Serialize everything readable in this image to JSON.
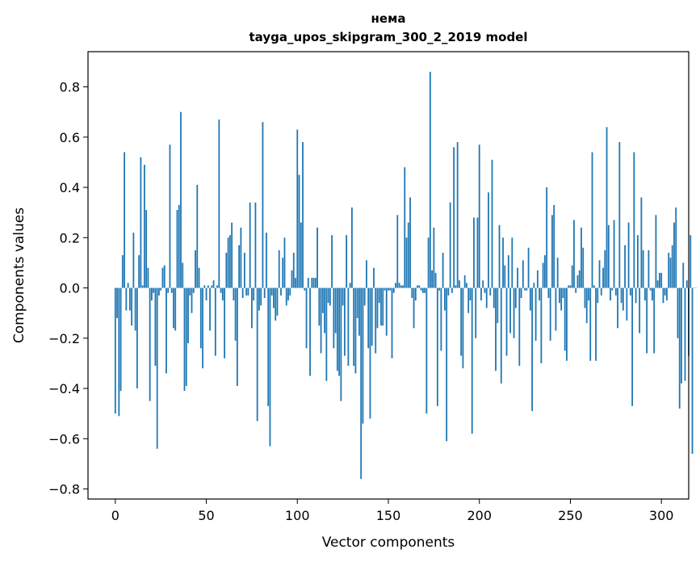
{
  "chart_data": {
    "type": "bar",
    "title": "нема",
    "subtitle": "tayga_upos_skipgram_300_2_2019 model",
    "xlabel": "Vector components",
    "ylabel": "Components values",
    "xlim": [
      -15,
      315
    ],
    "ylim": [
      -0.84,
      0.94
    ],
    "xticks": [
      0,
      50,
      100,
      150,
      200,
      250,
      300
    ],
    "yticks": [
      -0.8,
      -0.6,
      -0.4,
      -0.2,
      0.0,
      0.2,
      0.4,
      0.6,
      0.8
    ],
    "ytick_labels": [
      "−0.8",
      "−0.6",
      "−0.4",
      "−0.2",
      "0.0",
      "0.2",
      "0.4",
      "0.6",
      "0.8"
    ],
    "color": "#1f77b4",
    "values": [
      -0.5,
      -0.12,
      -0.51,
      -0.41,
      0.13,
      0.54,
      -0.09,
      0.02,
      -0.09,
      -0.15,
      0.22,
      -0.17,
      -0.4,
      0.13,
      0.52,
      0.01,
      0.49,
      0.31,
      0.08,
      -0.45,
      -0.05,
      -0.02,
      -0.31,
      -0.64,
      -0.03,
      -0.01,
      0.08,
      0.09,
      -0.34,
      -0.02,
      0.57,
      -0.02,
      -0.16,
      -0.17,
      0.31,
      0.33,
      0.7,
      0.1,
      -0.41,
      -0.39,
      -0.22,
      -0.03,
      -0.1,
      -0.02,
      0.15,
      0.41,
      0.08,
      -0.24,
      -0.32,
      0.01,
      -0.05,
      0.01,
      -0.17,
      0.01,
      0.03,
      -0.27,
      0.01,
      0.67,
      -0.02,
      -0.05,
      -0.28,
      0.14,
      0.2,
      0.21,
      0.26,
      -0.05,
      -0.21,
      -0.39,
      0.17,
      0.24,
      -0.04,
      0.14,
      -0.03,
      -0.03,
      0.34,
      -0.16,
      -0.05,
      0.34,
      -0.53,
      -0.09,
      -0.07,
      0.66,
      -0.04,
      0.22,
      -0.47,
      -0.63,
      -0.03,
      -0.08,
      -0.13,
      -0.11,
      0.15,
      -0.03,
      0.12,
      0.2,
      -0.07,
      -0.05,
      -0.03,
      0.07,
      0.14,
      0.04,
      0.63,
      0.45,
      0.26,
      0.58,
      -0.01,
      -0.24,
      0.04,
      -0.35,
      0.04,
      0.04,
      0.04,
      0.24,
      -0.15,
      -0.26,
      -0.1,
      -0.18,
      -0.37,
      -0.06,
      -0.07,
      0.21,
      -0.24,
      -0.18,
      -0.33,
      -0.35,
      -0.45,
      -0.07,
      -0.27,
      0.21,
      -0.31,
      0.02,
      0.32,
      -0.31,
      -0.34,
      -0.12,
      -0.19,
      -0.76,
      -0.54,
      -0.07,
      0.11,
      -0.24,
      -0.52,
      -0.23,
      0.08,
      -0.26,
      -0.16,
      -0.06,
      -0.15,
      -0.15,
      -0.01,
      -0.19,
      -0.01,
      -0.01,
      -0.28,
      -0.02,
      0.02,
      0.29,
      0.02,
      0.01,
      0.01,
      0.48,
      0.2,
      0.26,
      0.36,
      -0.04,
      -0.16,
      -0.05,
      0.01,
      0.01,
      -0.01,
      -0.02,
      -0.02,
      -0.5,
      0.2,
      0.86,
      0.07,
      0.24,
      0.06,
      -0.47,
      -0.01,
      -0.25,
      0.14,
      -0.09,
      -0.61,
      -0.03,
      0.34,
      -0.02,
      0.56,
      0.01,
      0.58,
      0.03,
      -0.27,
      -0.32,
      0.05,
      0.02,
      -0.1,
      -0.05,
      -0.58,
      0.28,
      -0.2,
      0.28,
      0.57,
      -0.05,
      0.03,
      -0.02,
      -0.08,
      0.38,
      -0.03,
      0.51,
      -0.08,
      -0.33,
      -0.14,
      0.25,
      -0.38,
      0.2,
      0.09,
      -0.27,
      0.13,
      -0.18,
      0.2,
      -0.2,
      -0.08,
      0.08,
      -0.31,
      -0.04,
      0.11,
      -0.01,
      -0.01,
      0.16,
      -0.09,
      -0.49,
      0.02,
      -0.21,
      0.07,
      -0.05,
      -0.3,
      0.1,
      0.13,
      0.4,
      -0.04,
      -0.21,
      0.29,
      0.33,
      -0.17,
      0.12,
      -0.06,
      -0.09,
      -0.04,
      -0.25,
      -0.29,
      0.01,
      0.01,
      0.09,
      0.27,
      -0.02,
      0.05,
      0.07,
      0.24,
      0.16,
      -0.08,
      -0.14,
      -0.05,
      -0.29,
      0.54,
      0.01,
      -0.29,
      -0.06,
      0.11,
      -0.03,
      0.08,
      0.15,
      0.64,
      0.25,
      -0.05,
      -0.01,
      0.27,
      -0.03,
      -0.16,
      0.58,
      -0.06,
      -0.09,
      0.17,
      -0.13,
      0.26,
      -0.03,
      -0.47,
      0.54,
      -0.06,
      0.21,
      -0.18,
      0.36,
      0.15,
      -0.05,
      -0.26,
      0.15,
      -0.01,
      -0.05,
      -0.26,
      0.29,
      0.03,
      0.06,
      0.06,
      -0.06,
      -0.03,
      -0.05,
      0.14,
      0.12,
      0.17,
      0.26,
      0.32,
      -0.2,
      -0.48,
      -0.38,
      0.1,
      -0.37,
      0.03,
      -0.27,
      0.21,
      -0.66,
      0.0,
      0.0
    ]
  }
}
